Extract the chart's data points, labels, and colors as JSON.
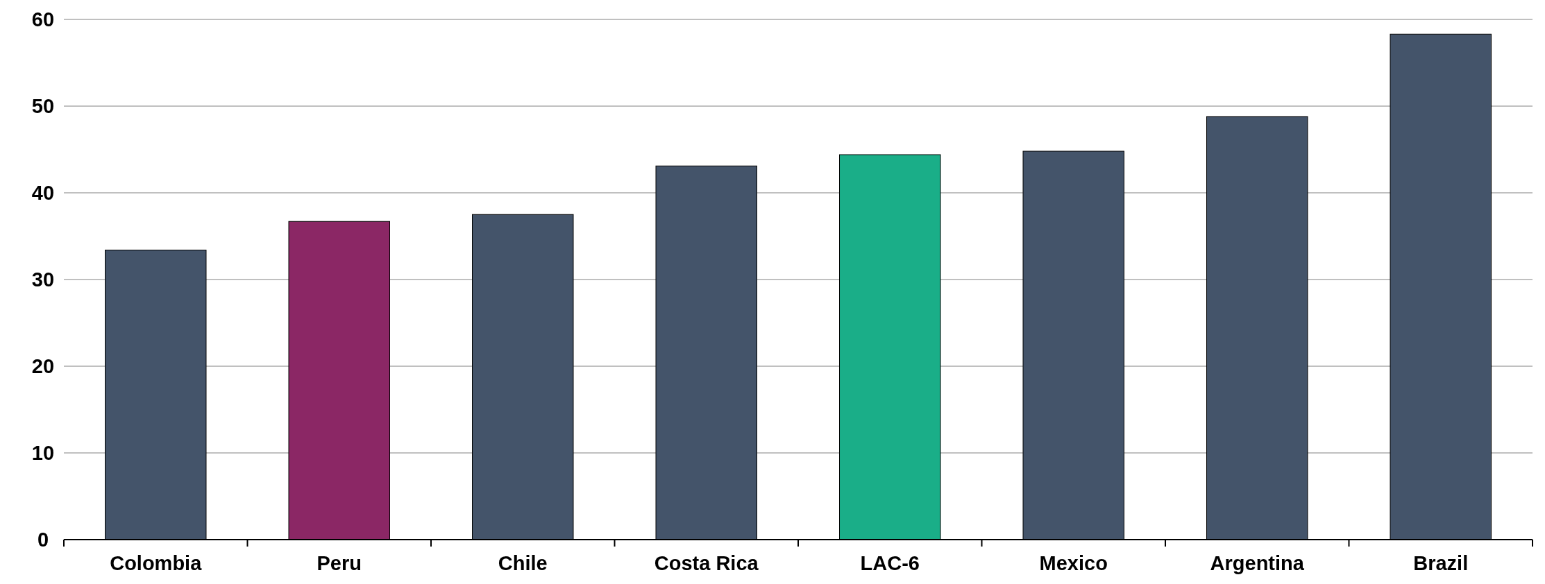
{
  "chart_data": {
    "type": "bar",
    "categories": [
      "Colombia",
      "Peru",
      "Chile",
      "Costa Rica",
      "LAC-6",
      "Mexico",
      "Argentina",
      "Brazil"
    ],
    "values": [
      33.4,
      36.7,
      37.5,
      43.1,
      44.4,
      44.8,
      48.8,
      58.3
    ],
    "colors": [
      "#44546a",
      "#8b2765",
      "#44546a",
      "#44546a",
      "#1aae88",
      "#44546a",
      "#44546a",
      "#44546a"
    ],
    "ylim": [
      0,
      60
    ],
    "yticks": [
      0,
      10,
      20,
      30,
      40,
      50,
      60
    ],
    "grid": "y"
  }
}
